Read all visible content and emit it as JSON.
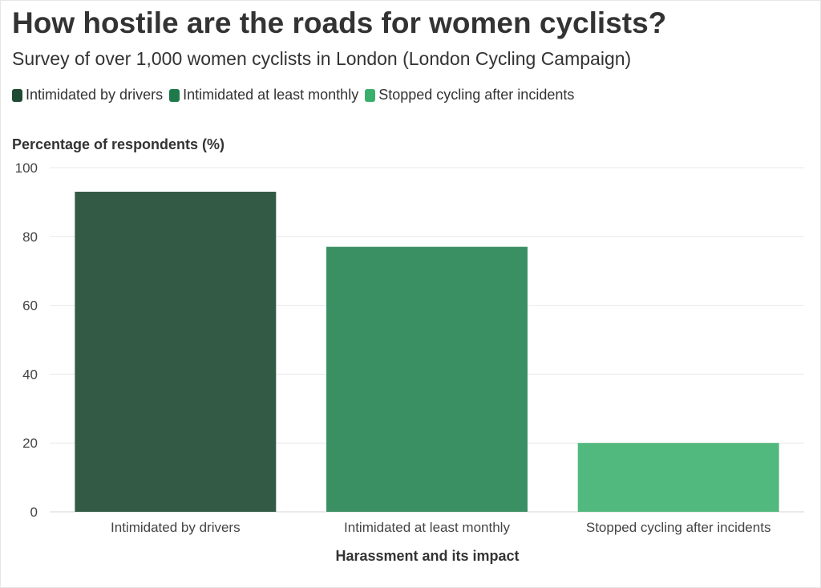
{
  "title": "How hostile are the roads for women cyclists?",
  "subtitle": "Survey of over 1,000 women cyclists in London (London Cycling Campaign)",
  "legend": [
    {
      "label": "Intimidated by drivers",
      "color": "#1f4a33"
    },
    {
      "label": "Intimidated at least monthly",
      "color": "#1e7a4a"
    },
    {
      "label": "Stopped cycling after incidents",
      "color": "#3aaf6b"
    }
  ],
  "chart_data": {
    "type": "bar",
    "title": "How hostile are the roads for women cyclists?",
    "subtitle": "Survey of over 1,000 women cyclists in London (London Cycling Campaign)",
    "categories": [
      "Intimidated by drivers",
      "Intimidated at least monthly",
      "Stopped cycling after incidents"
    ],
    "values": [
      93,
      77,
      20
    ],
    "colors": [
      "#335a44",
      "#3a8f63",
      "#52b97e"
    ],
    "xlabel": "Harassment and its impact",
    "ylabel": "Percentage of respondents (%)",
    "ylim": [
      0,
      100
    ],
    "yticks": [
      0,
      20,
      40,
      60,
      80,
      100
    ],
    "grid": true,
    "legend_position": "top-left"
  }
}
